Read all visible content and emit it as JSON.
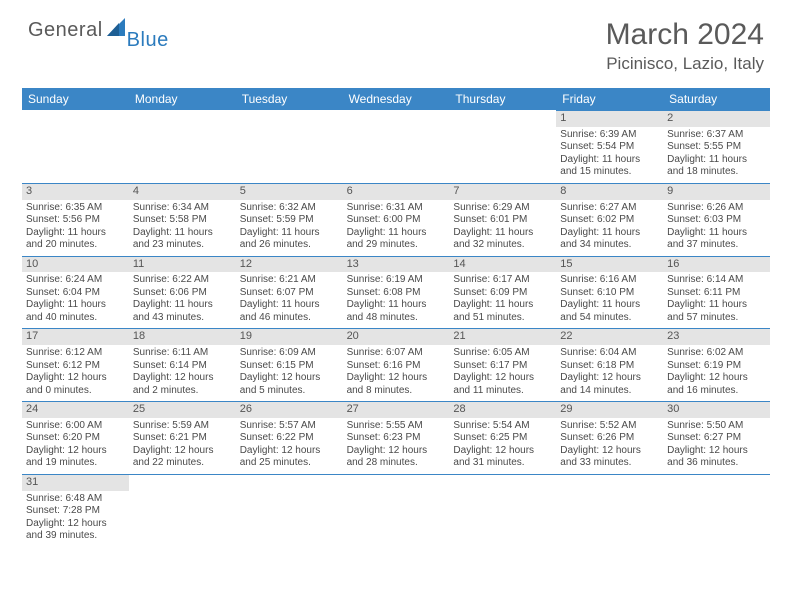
{
  "logo": {
    "main": "General",
    "sub": "Blue"
  },
  "title": "March 2024",
  "location": "Picinisco, Lazio, Italy",
  "colors": {
    "header_bar": "#3b86c6",
    "band": "#e4e4e4",
    "text": "#4a4a4a",
    "logo_gray": "#5a5a5a",
    "logo_blue": "#2b7bbd",
    "rule": "#3b86c6"
  },
  "days_of_week": [
    "Sunday",
    "Monday",
    "Tuesday",
    "Wednesday",
    "Thursday",
    "Friday",
    "Saturday"
  ],
  "weeks": [
    [
      null,
      null,
      null,
      null,
      null,
      {
        "n": "1",
        "sr": "Sunrise: 6:39 AM",
        "ss": "Sunset: 5:54 PM",
        "d1": "Daylight: 11 hours",
        "d2": "and 15 minutes."
      },
      {
        "n": "2",
        "sr": "Sunrise: 6:37 AM",
        "ss": "Sunset: 5:55 PM",
        "d1": "Daylight: 11 hours",
        "d2": "and 18 minutes."
      }
    ],
    [
      {
        "n": "3",
        "sr": "Sunrise: 6:35 AM",
        "ss": "Sunset: 5:56 PM",
        "d1": "Daylight: 11 hours",
        "d2": "and 20 minutes."
      },
      {
        "n": "4",
        "sr": "Sunrise: 6:34 AM",
        "ss": "Sunset: 5:58 PM",
        "d1": "Daylight: 11 hours",
        "d2": "and 23 minutes."
      },
      {
        "n": "5",
        "sr": "Sunrise: 6:32 AM",
        "ss": "Sunset: 5:59 PM",
        "d1": "Daylight: 11 hours",
        "d2": "and 26 minutes."
      },
      {
        "n": "6",
        "sr": "Sunrise: 6:31 AM",
        "ss": "Sunset: 6:00 PM",
        "d1": "Daylight: 11 hours",
        "d2": "and 29 minutes."
      },
      {
        "n": "7",
        "sr": "Sunrise: 6:29 AM",
        "ss": "Sunset: 6:01 PM",
        "d1": "Daylight: 11 hours",
        "d2": "and 32 minutes."
      },
      {
        "n": "8",
        "sr": "Sunrise: 6:27 AM",
        "ss": "Sunset: 6:02 PM",
        "d1": "Daylight: 11 hours",
        "d2": "and 34 minutes."
      },
      {
        "n": "9",
        "sr": "Sunrise: 6:26 AM",
        "ss": "Sunset: 6:03 PM",
        "d1": "Daylight: 11 hours",
        "d2": "and 37 minutes."
      }
    ],
    [
      {
        "n": "10",
        "sr": "Sunrise: 6:24 AM",
        "ss": "Sunset: 6:04 PM",
        "d1": "Daylight: 11 hours",
        "d2": "and 40 minutes."
      },
      {
        "n": "11",
        "sr": "Sunrise: 6:22 AM",
        "ss": "Sunset: 6:06 PM",
        "d1": "Daylight: 11 hours",
        "d2": "and 43 minutes."
      },
      {
        "n": "12",
        "sr": "Sunrise: 6:21 AM",
        "ss": "Sunset: 6:07 PM",
        "d1": "Daylight: 11 hours",
        "d2": "and 46 minutes."
      },
      {
        "n": "13",
        "sr": "Sunrise: 6:19 AM",
        "ss": "Sunset: 6:08 PM",
        "d1": "Daylight: 11 hours",
        "d2": "and 48 minutes."
      },
      {
        "n": "14",
        "sr": "Sunrise: 6:17 AM",
        "ss": "Sunset: 6:09 PM",
        "d1": "Daylight: 11 hours",
        "d2": "and 51 minutes."
      },
      {
        "n": "15",
        "sr": "Sunrise: 6:16 AM",
        "ss": "Sunset: 6:10 PM",
        "d1": "Daylight: 11 hours",
        "d2": "and 54 minutes."
      },
      {
        "n": "16",
        "sr": "Sunrise: 6:14 AM",
        "ss": "Sunset: 6:11 PM",
        "d1": "Daylight: 11 hours",
        "d2": "and 57 minutes."
      }
    ],
    [
      {
        "n": "17",
        "sr": "Sunrise: 6:12 AM",
        "ss": "Sunset: 6:12 PM",
        "d1": "Daylight: 12 hours",
        "d2": "and 0 minutes."
      },
      {
        "n": "18",
        "sr": "Sunrise: 6:11 AM",
        "ss": "Sunset: 6:14 PM",
        "d1": "Daylight: 12 hours",
        "d2": "and 2 minutes."
      },
      {
        "n": "19",
        "sr": "Sunrise: 6:09 AM",
        "ss": "Sunset: 6:15 PM",
        "d1": "Daylight: 12 hours",
        "d2": "and 5 minutes."
      },
      {
        "n": "20",
        "sr": "Sunrise: 6:07 AM",
        "ss": "Sunset: 6:16 PM",
        "d1": "Daylight: 12 hours",
        "d2": "and 8 minutes."
      },
      {
        "n": "21",
        "sr": "Sunrise: 6:05 AM",
        "ss": "Sunset: 6:17 PM",
        "d1": "Daylight: 12 hours",
        "d2": "and 11 minutes."
      },
      {
        "n": "22",
        "sr": "Sunrise: 6:04 AM",
        "ss": "Sunset: 6:18 PM",
        "d1": "Daylight: 12 hours",
        "d2": "and 14 minutes."
      },
      {
        "n": "23",
        "sr": "Sunrise: 6:02 AM",
        "ss": "Sunset: 6:19 PM",
        "d1": "Daylight: 12 hours",
        "d2": "and 16 minutes."
      }
    ],
    [
      {
        "n": "24",
        "sr": "Sunrise: 6:00 AM",
        "ss": "Sunset: 6:20 PM",
        "d1": "Daylight: 12 hours",
        "d2": "and 19 minutes."
      },
      {
        "n": "25",
        "sr": "Sunrise: 5:59 AM",
        "ss": "Sunset: 6:21 PM",
        "d1": "Daylight: 12 hours",
        "d2": "and 22 minutes."
      },
      {
        "n": "26",
        "sr": "Sunrise: 5:57 AM",
        "ss": "Sunset: 6:22 PM",
        "d1": "Daylight: 12 hours",
        "d2": "and 25 minutes."
      },
      {
        "n": "27",
        "sr": "Sunrise: 5:55 AM",
        "ss": "Sunset: 6:23 PM",
        "d1": "Daylight: 12 hours",
        "d2": "and 28 minutes."
      },
      {
        "n": "28",
        "sr": "Sunrise: 5:54 AM",
        "ss": "Sunset: 6:25 PM",
        "d1": "Daylight: 12 hours",
        "d2": "and 31 minutes."
      },
      {
        "n": "29",
        "sr": "Sunrise: 5:52 AM",
        "ss": "Sunset: 6:26 PM",
        "d1": "Daylight: 12 hours",
        "d2": "and 33 minutes."
      },
      {
        "n": "30",
        "sr": "Sunrise: 5:50 AM",
        "ss": "Sunset: 6:27 PM",
        "d1": "Daylight: 12 hours",
        "d2": "and 36 minutes."
      }
    ],
    [
      {
        "n": "31",
        "sr": "Sunrise: 6:48 AM",
        "ss": "Sunset: 7:28 PM",
        "d1": "Daylight: 12 hours",
        "d2": "and 39 minutes."
      },
      null,
      null,
      null,
      null,
      null,
      null
    ]
  ]
}
